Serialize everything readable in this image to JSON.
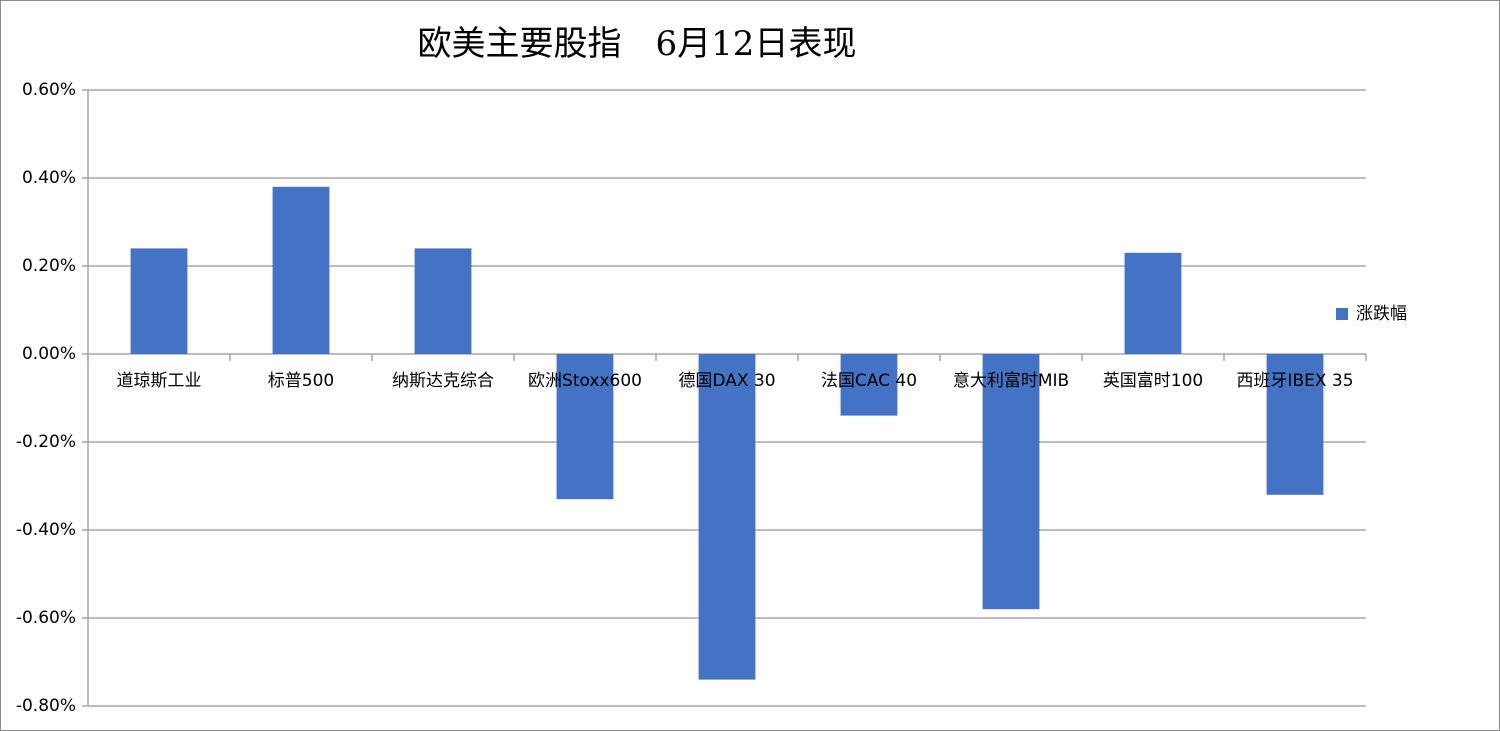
{
  "chart_data": {
    "type": "bar",
    "title": "欧美主要股指　6月12日表现",
    "categories": [
      "道琼斯工业",
      "标普500",
      "纳斯达克综合",
      "欧洲Stoxx600",
      "德国DAX 30",
      "法国CAC 40",
      "意大利富时MIB",
      "英国富时100",
      "西班牙IBEX 35"
    ],
    "series": [
      {
        "name": "涨跌幅",
        "color": "#4472c4",
        "values": [
          0.24,
          0.38,
          0.24,
          -0.33,
          -0.74,
          -0.14,
          -0.58,
          0.23,
          -0.32
        ]
      }
    ],
    "ylim": [
      -0.8,
      0.6
    ],
    "yticks": [
      {
        "value": -0.8,
        "label": "-0.80%"
      },
      {
        "value": -0.6,
        "label": "-0.60%"
      },
      {
        "value": -0.4,
        "label": "-0.40%"
      },
      {
        "value": -0.2,
        "label": "-0.20%"
      },
      {
        "value": 0,
        "label": "0.00%"
      },
      {
        "value": 0.2,
        "label": "0.20%"
      },
      {
        "value": 0.4,
        "label": "0.40%"
      },
      {
        "value": 0.6,
        "label": "0.60%"
      }
    ],
    "grid": true,
    "legend": "right"
  }
}
